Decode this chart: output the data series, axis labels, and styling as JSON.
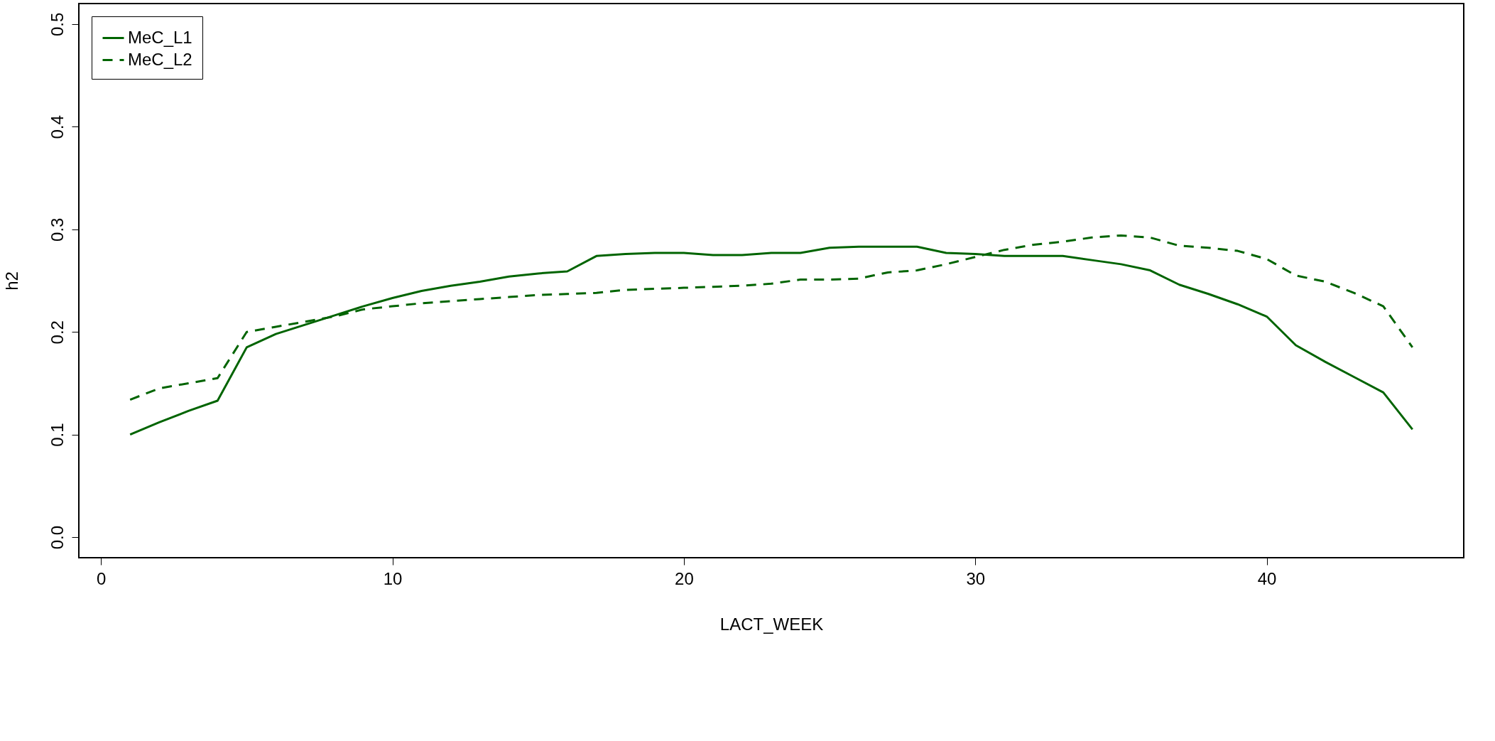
{
  "chart_data": {
    "type": "line",
    "xlabel": "LACT_WEEK",
    "ylabel": "h2",
    "x": [
      1,
      2,
      3,
      4,
      5,
      6,
      7,
      8,
      9,
      10,
      11,
      12,
      13,
      14,
      15,
      16,
      17,
      18,
      19,
      20,
      21,
      22,
      23,
      24,
      25,
      26,
      27,
      28,
      29,
      30,
      31,
      32,
      33,
      34,
      35,
      36,
      37,
      38,
      39,
      40,
      41,
      42,
      43,
      44,
      45
    ],
    "series": [
      {
        "name": "MeC_L1",
        "color": "#006400",
        "line_style": "solid",
        "values": [
          0.1,
          0.112,
          0.123,
          0.133,
          0.185,
          0.198,
          0.207,
          0.216,
          0.225,
          0.233,
          0.24,
          0.245,
          0.249,
          0.254,
          0.257,
          0.259,
          0.274,
          0.276,
          0.277,
          0.277,
          0.275,
          0.275,
          0.277,
          0.277,
          0.282,
          0.283,
          0.283,
          0.283,
          0.277,
          0.276,
          0.274,
          0.274,
          0.274,
          0.27,
          0.266,
          0.26,
          0.246,
          0.237,
          0.227,
          0.215,
          0.187,
          0.171,
          0.156,
          0.141,
          0.105
        ]
      },
      {
        "name": "MeC_L2",
        "color": "#006400",
        "line_style": "dashed",
        "values": [
          0.134,
          0.145,
          0.15,
          0.155,
          0.2,
          0.205,
          0.21,
          0.215,
          0.222,
          0.225,
          0.228,
          0.23,
          0.232,
          0.234,
          0.236,
          0.237,
          0.238,
          0.241,
          0.242,
          0.243,
          0.244,
          0.245,
          0.247,
          0.251,
          0.251,
          0.252,
          0.258,
          0.26,
          0.266,
          0.273,
          0.28,
          0.285,
          0.288,
          0.292,
          0.294,
          0.292,
          0.284,
          0.282,
          0.279,
          0.271,
          0.255,
          0.249,
          0.238,
          0.225,
          0.185
        ]
      }
    ],
    "xlim": [
      -0.76,
      46.76
    ],
    "xticks": [
      0,
      10,
      20,
      30,
      40
    ],
    "ylim": [
      -0.02,
      0.52
    ],
    "yticks": [
      {
        "value": 0,
        "label": "0.0"
      },
      0.1,
      0.2,
      0.3,
      0.4,
      0.5
    ],
    "grid": false,
    "legend": "top left"
  }
}
